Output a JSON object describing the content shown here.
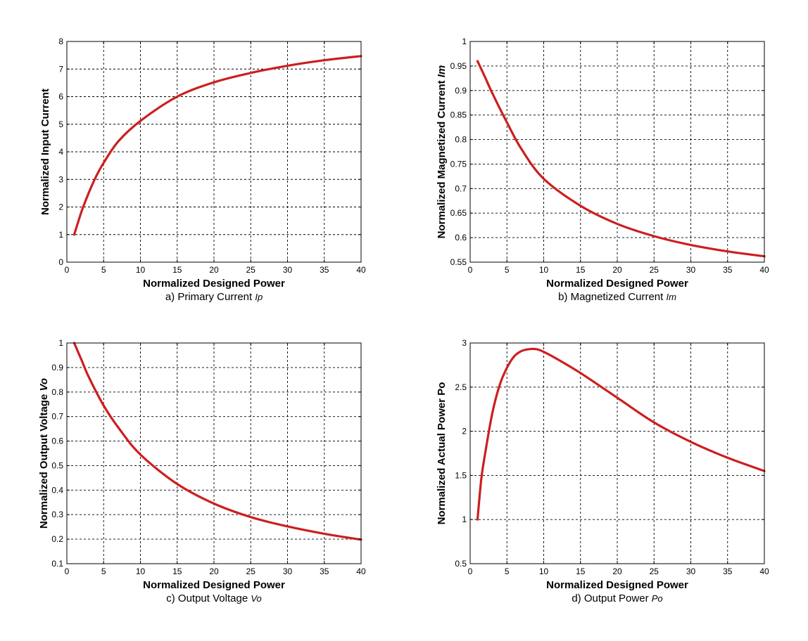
{
  "chart_data": [
    {
      "type": "line",
      "panel": "a",
      "xlabel": "Normalized Designed Power",
      "ylabel": "Normalized Input Current",
      "caption": "a) Primary Current",
      "caption_symbol": "Ip",
      "xlim": [
        0,
        40
      ],
      "ylim": [
        0,
        8
      ],
      "xticks": [
        0,
        5,
        10,
        15,
        20,
        25,
        30,
        35,
        40
      ],
      "yticks": [
        0,
        1,
        2,
        3,
        4,
        5,
        6,
        7,
        8
      ],
      "grid": true,
      "line_color": "#cc1f1f",
      "series": [
        {
          "name": "Ip",
          "x": [
            1,
            2,
            3,
            4,
            5,
            7,
            10,
            15,
            20,
            25,
            30,
            35,
            40
          ],
          "y": [
            1.0,
            1.84,
            2.53,
            3.12,
            3.6,
            4.38,
            5.12,
            6.0,
            6.52,
            6.86,
            7.12,
            7.32,
            7.47
          ]
        }
      ]
    },
    {
      "type": "line",
      "panel": "b",
      "xlabel": "Normalized Designed Power",
      "ylabel": "Normalized Magnetized Current",
      "ylabel_symbol": "Im",
      "caption": "b) Magnetized Current",
      "caption_symbol": "Im",
      "xlim": [
        0,
        40
      ],
      "ylim": [
        0.55,
        1
      ],
      "xticks": [
        0,
        5,
        10,
        15,
        20,
        25,
        30,
        35,
        40
      ],
      "yticks": [
        0.55,
        0.6,
        0.65,
        0.7,
        0.75,
        0.8,
        0.85,
        0.9,
        0.95,
        1
      ],
      "grid": true,
      "line_color": "#cc1f1f",
      "series": [
        {
          "name": "Im",
          "x": [
            1,
            2,
            3,
            5,
            7,
            10,
            15,
            20,
            25,
            30,
            35,
            40
          ],
          "y": [
            0.96,
            0.928,
            0.895,
            0.835,
            0.78,
            0.72,
            0.665,
            0.628,
            0.603,
            0.585,
            0.572,
            0.562
          ]
        }
      ]
    },
    {
      "type": "line",
      "panel": "c",
      "xlabel": "Normalized Designed Power",
      "ylabel": "Normalized Output Voltage",
      "ylabel_symbol": "Vo",
      "caption": "c) Output Voltage",
      "caption_symbol": "Vo",
      "xlim": [
        0,
        40
      ],
      "ylim": [
        0.1,
        1
      ],
      "xticks": [
        0,
        5,
        10,
        15,
        20,
        25,
        30,
        35,
        40
      ],
      "yticks": [
        0.1,
        0.2,
        0.3,
        0.4,
        0.5,
        0.6,
        0.7,
        0.8,
        0.9,
        1
      ],
      "grid": true,
      "line_color": "#cc1f1f",
      "series": [
        {
          "name": "Vo",
          "x": [
            1,
            2,
            3,
            5,
            7,
            10,
            15,
            20,
            25,
            30,
            35,
            40
          ],
          "y": [
            1.0,
            0.93,
            0.86,
            0.745,
            0.655,
            0.545,
            0.425,
            0.345,
            0.29,
            0.252,
            0.222,
            0.198
          ]
        }
      ]
    },
    {
      "type": "line",
      "panel": "d",
      "xlabel": "Normalized Designed Power",
      "ylabel": "Normalized Actual Power Po",
      "caption": "d) Output Power",
      "caption_symbol": "Po",
      "xlim": [
        0,
        40
      ],
      "ylim": [
        0.5,
        3
      ],
      "xticks": [
        0,
        5,
        10,
        15,
        20,
        25,
        30,
        35,
        40
      ],
      "yticks": [
        0.5,
        1,
        1.5,
        2,
        2.5,
        3
      ],
      "grid": true,
      "line_color": "#cc1f1f",
      "series": [
        {
          "name": "Po",
          "x": [
            1,
            1.5,
            2,
            3,
            4,
            5,
            6,
            7,
            8,
            9,
            10,
            12,
            15,
            20,
            25,
            30,
            35,
            40
          ],
          "y": [
            1.0,
            1.45,
            1.73,
            2.2,
            2.52,
            2.72,
            2.85,
            2.91,
            2.93,
            2.93,
            2.9,
            2.81,
            2.66,
            2.38,
            2.1,
            1.88,
            1.7,
            1.55
          ]
        }
      ]
    }
  ]
}
